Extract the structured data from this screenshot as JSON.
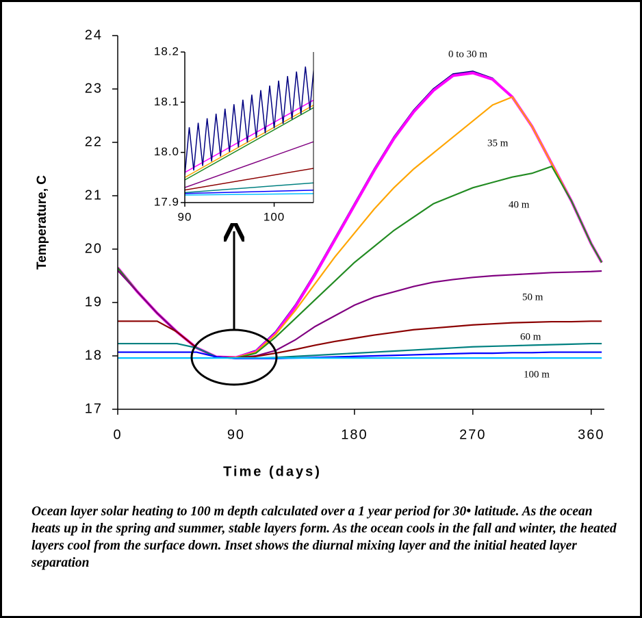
{
  "chart_data": [
    {
      "type": "line",
      "ylabel": "Temperature, C",
      "xlabel": "Time (days)",
      "xlim": [
        0,
        370
      ],
      "xticks": [
        0,
        90,
        180,
        270,
        360
      ],
      "ylim": [
        17,
        24
      ],
      "yticks": [
        17,
        18,
        19,
        20,
        21,
        22,
        23,
        24
      ],
      "x": [
        0,
        15,
        30,
        45,
        60,
        75,
        90,
        105,
        120,
        135,
        150,
        165,
        180,
        195,
        210,
        225,
        240,
        255,
        270,
        285,
        300,
        315,
        330,
        345,
        360,
        368
      ],
      "series": [
        {
          "name": "0 to 30 m",
          "color": "#000080",
          "values": [
            19.65,
            19.2,
            18.8,
            18.45,
            18.15,
            17.98,
            17.98,
            18.1,
            18.45,
            18.95,
            19.55,
            20.2,
            20.85,
            21.5,
            22.1,
            22.6,
            23.0,
            23.28,
            23.33,
            23.2,
            22.85,
            22.3,
            21.6,
            20.9,
            20.1,
            19.75
          ]
        },
        {
          "color": "#ff00ff",
          "values": [
            19.65,
            19.2,
            18.8,
            18.45,
            18.15,
            17.98,
            17.97,
            18.08,
            18.42,
            18.92,
            19.52,
            20.17,
            20.82,
            21.47,
            22.07,
            22.57,
            22.97,
            23.25,
            23.3,
            23.18,
            22.85,
            22.3,
            21.6,
            20.9,
            20.1,
            19.75
          ]
        },
        {
          "name": "35 m",
          "color": "#ffa500",
          "values": [
            19.65,
            19.2,
            18.8,
            18.45,
            18.15,
            17.98,
            17.97,
            18.07,
            18.4,
            18.85,
            19.35,
            19.85,
            20.3,
            20.75,
            21.15,
            21.5,
            21.8,
            22.1,
            22.4,
            22.7,
            22.85,
            22.3,
            21.6,
            20.9,
            20.1,
            19.75
          ]
        },
        {
          "name": "40 m",
          "color": "#228b22",
          "values": [
            19.65,
            19.2,
            18.8,
            18.45,
            18.15,
            17.98,
            17.96,
            18.05,
            18.35,
            18.7,
            19.05,
            19.4,
            19.75,
            20.05,
            20.35,
            20.6,
            20.85,
            21.0,
            21.15,
            21.25,
            21.35,
            21.42,
            21.55,
            20.9,
            20.1,
            19.75
          ]
        },
        {
          "name": "50 m",
          "color": "#800080",
          "values": [
            19.6,
            19.2,
            18.8,
            18.45,
            18.15,
            17.98,
            17.96,
            18.0,
            18.1,
            18.3,
            18.55,
            18.75,
            18.95,
            19.1,
            19.2,
            19.3,
            19.38,
            19.43,
            19.47,
            19.5,
            19.52,
            19.54,
            19.56,
            19.57,
            19.58,
            19.59
          ]
        },
        {
          "name": "60 m",
          "color": "#8b0000",
          "values": [
            18.65,
            18.65,
            18.65,
            18.45,
            18.15,
            17.98,
            17.96,
            17.99,
            18.05,
            18.12,
            18.2,
            18.27,
            18.33,
            18.39,
            18.44,
            18.49,
            18.52,
            18.55,
            18.58,
            18.6,
            18.62,
            18.63,
            18.64,
            18.64,
            18.65,
            18.65
          ]
        },
        {
          "color": "#008080",
          "values": [
            18.23,
            18.23,
            18.23,
            18.23,
            18.15,
            17.98,
            17.95,
            17.96,
            17.97,
            17.99,
            18.01,
            18.03,
            18.05,
            18.07,
            18.09,
            18.11,
            18.13,
            18.15,
            18.17,
            18.18,
            18.19,
            18.2,
            18.21,
            18.22,
            18.23,
            18.23
          ]
        },
        {
          "color": "#0000ff",
          "values": [
            18.07,
            18.07,
            18.07,
            18.07,
            18.07,
            17.98,
            17.95,
            17.95,
            17.95,
            17.96,
            17.97,
            17.98,
            17.99,
            18.0,
            18.01,
            18.02,
            18.03,
            18.04,
            18.05,
            18.05,
            18.06,
            18.06,
            18.07,
            18.07,
            18.07,
            18.07
          ]
        },
        {
          "name": "100 m",
          "color": "#00bfff",
          "values": [
            17.96,
            17.96,
            17.96,
            17.96,
            17.96,
            17.96,
            17.96,
            17.96,
            17.96,
            17.96,
            17.96,
            17.96,
            17.96,
            17.96,
            17.96,
            17.96,
            17.96,
            17.96,
            17.96,
            17.96,
            17.96,
            17.96,
            17.96,
            17.96,
            17.96,
            17.96
          ]
        }
      ]
    },
    {
      "type": "line",
      "xlim": [
        90,
        104.4
      ],
      "xticks": [
        90,
        100
      ],
      "ylim": [
        17.9,
        18.2
      ],
      "yticks": [
        {
          "value": 17.9,
          "label": "17.9"
        },
        {
          "value": 18.0,
          "label": "18.0"
        },
        {
          "value": 18.1,
          "label": "18.1"
        },
        {
          "value": 18.2,
          "label": "18.2"
        }
      ],
      "series": [
        {
          "color": "#ff00ff",
          "x": [
            90,
            105
          ],
          "values": [
            17.96,
            18.11
          ]
        },
        {
          "color": "#ffa500",
          "x": [
            90,
            105
          ],
          "values": [
            17.95,
            18.1
          ]
        },
        {
          "color": "#228b22",
          "x": [
            90,
            105
          ],
          "values": [
            17.945,
            18.095
          ]
        },
        {
          "color": "#800080",
          "x": [
            90,
            105
          ],
          "values": [
            17.93,
            18.025
          ]
        },
        {
          "color": "#8b0000",
          "x": [
            90,
            105
          ],
          "values": [
            17.925,
            17.97
          ]
        },
        {
          "color": "#008080",
          "x": [
            90,
            105
          ],
          "values": [
            17.92,
            17.94
          ]
        },
        {
          "color": "#0000ff",
          "x": [
            90,
            105
          ],
          "values": [
            17.918,
            17.925
          ]
        },
        {
          "color": "#00bfff",
          "x": [
            90,
            105
          ],
          "values": [
            17.915,
            17.918
          ]
        },
        {
          "color": "#000080",
          "x": [
            90,
            90.5,
            91,
            91.5,
            92,
            92.5,
            93,
            93.5,
            94,
            94.5,
            95,
            95.5,
            96,
            96.5,
            97,
            97.5,
            98,
            98.5,
            99,
            99.5,
            100,
            100.5,
            101,
            101.5,
            102,
            102.5,
            103,
            103.5,
            104,
            104.5,
            105
          ],
          "values": [
            17.955,
            18.05,
            17.964,
            18.059,
            17.973,
            18.068,
            17.982,
            18.077,
            17.992,
            18.087,
            18.001,
            18.096,
            18.01,
            18.105,
            18.02,
            18.115,
            18.029,
            18.124,
            18.038,
            18.133,
            18.048,
            18.143,
            18.057,
            18.152,
            18.066,
            18.161,
            18.076,
            18.171,
            18.085,
            18.18,
            18.094
          ]
        }
      ]
    }
  ],
  "caption": "Ocean layer solar heating to 100 m depth calculated over a 1 year period for 30• latitude.  As the ocean heats up in the spring and summer, stable layers form.  As the ocean cools in the fall and winter, the heated layers cool from the surface down.  Inset shows the diurnal mixing layer and the initial heated layer separation"
}
